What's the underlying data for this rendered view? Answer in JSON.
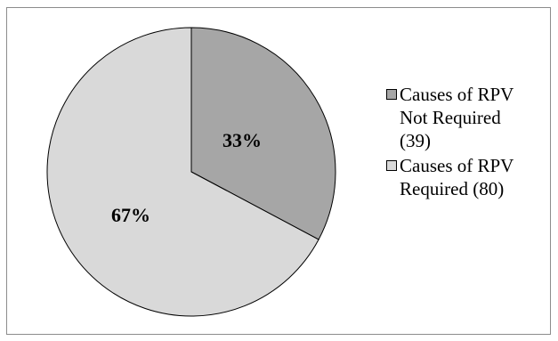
{
  "chart_data": {
    "type": "pie",
    "slices": [
      {
        "label": "Causes of RPV Not Required (39)",
        "value": 39,
        "percent_label": "33%",
        "color": "#a6a6a6"
      },
      {
        "label": "Causes of RPV Required (80)",
        "value": 80,
        "percent_label": "67%",
        "color": "#d9d9d9"
      }
    ],
    "legend": {
      "position": "right",
      "items": [
        {
          "lines": [
            "Causes of RPV",
            "Not Required",
            "(39)"
          ],
          "color": "#a6a6a6"
        },
        {
          "lines": [
            "Causes of RPV",
            "Required (80)"
          ],
          "color": "#d9d9d9"
        }
      ]
    }
  }
}
